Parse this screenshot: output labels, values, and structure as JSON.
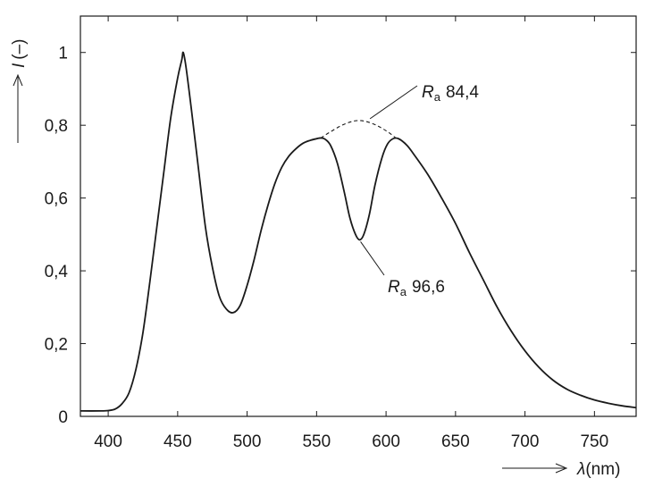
{
  "chart_data": {
    "type": "line",
    "x_axis": {
      "label_symbol": "λ",
      "label_unit": "(nm)",
      "range": [
        380,
        780
      ],
      "ticks": [
        400,
        450,
        500,
        550,
        600,
        650,
        700,
        750
      ],
      "tick_labels": [
        "400",
        "450",
        "500",
        "550",
        "600",
        "650",
        "700",
        "750"
      ]
    },
    "y_axis": {
      "label_symbol": "I",
      "label_unit": "(–)",
      "range": [
        0,
        1.1
      ],
      "ticks": [
        0,
        0.2,
        0.4,
        0.6,
        0.8,
        1.0
      ],
      "tick_labels": [
        "0",
        "0,2",
        "0,4",
        "0,6",
        "0,8",
        "1"
      ]
    },
    "grid": false,
    "series": [
      {
        "name": "Ra 96,6",
        "style": "solid",
        "color": "#1a1a1a",
        "points": [
          [
            380,
            0.015
          ],
          [
            395,
            0.015
          ],
          [
            400,
            0.016
          ],
          [
            405,
            0.02
          ],
          [
            410,
            0.035
          ],
          [
            415,
            0.065
          ],
          [
            420,
            0.13
          ],
          [
            425,
            0.23
          ],
          [
            430,
            0.37
          ],
          [
            435,
            0.52
          ],
          [
            440,
            0.67
          ],
          [
            445,
            0.82
          ],
          [
            450,
            0.93
          ],
          [
            453,
            0.98
          ],
          [
            454,
            1.0
          ],
          [
            456,
            0.96
          ],
          [
            460,
            0.84
          ],
          [
            465,
            0.68
          ],
          [
            470,
            0.52
          ],
          [
            475,
            0.41
          ],
          [
            480,
            0.33
          ],
          [
            485,
            0.295
          ],
          [
            490,
            0.285
          ],
          [
            495,
            0.305
          ],
          [
            500,
            0.36
          ],
          [
            505,
            0.43
          ],
          [
            510,
            0.51
          ],
          [
            515,
            0.58
          ],
          [
            520,
            0.64
          ],
          [
            525,
            0.685
          ],
          [
            530,
            0.715
          ],
          [
            535,
            0.735
          ],
          [
            540,
            0.75
          ],
          [
            545,
            0.758
          ],
          [
            550,
            0.763
          ],
          [
            553,
            0.765
          ],
          [
            556,
            0.762
          ],
          [
            560,
            0.745
          ],
          [
            565,
            0.695
          ],
          [
            570,
            0.615
          ],
          [
            574,
            0.545
          ],
          [
            578,
            0.5
          ],
          [
            581,
            0.485
          ],
          [
            584,
            0.5
          ],
          [
            588,
            0.555
          ],
          [
            592,
            0.635
          ],
          [
            597,
            0.71
          ],
          [
            601,
            0.748
          ],
          [
            605,
            0.763
          ],
          [
            609,
            0.763
          ],
          [
            615,
            0.745
          ],
          [
            620,
            0.72
          ],
          [
            630,
            0.665
          ],
          [
            640,
            0.6
          ],
          [
            650,
            0.53
          ],
          [
            660,
            0.45
          ],
          [
            670,
            0.375
          ],
          [
            680,
            0.3
          ],
          [
            690,
            0.235
          ],
          [
            700,
            0.18
          ],
          [
            710,
            0.135
          ],
          [
            720,
            0.1
          ],
          [
            730,
            0.075
          ],
          [
            740,
            0.058
          ],
          [
            750,
            0.045
          ],
          [
            760,
            0.036
          ],
          [
            770,
            0.029
          ],
          [
            780,
            0.024
          ]
        ]
      },
      {
        "name": "Ra 84,4",
        "style": "dashed",
        "color": "#1a1a1a",
        "points": [
          [
            553,
            0.765
          ],
          [
            560,
            0.782
          ],
          [
            570,
            0.803
          ],
          [
            580,
            0.813
          ],
          [
            590,
            0.805
          ],
          [
            600,
            0.785
          ],
          [
            607,
            0.765
          ]
        ]
      }
    ],
    "annotations": [
      {
        "symbol": "R",
        "sub": "a",
        "value": "84,4",
        "anchor": [
          580,
          0.813
        ]
      },
      {
        "symbol": "R",
        "sub": "a",
        "value": "96,6",
        "anchor": [
          581,
          0.485
        ]
      }
    ]
  }
}
